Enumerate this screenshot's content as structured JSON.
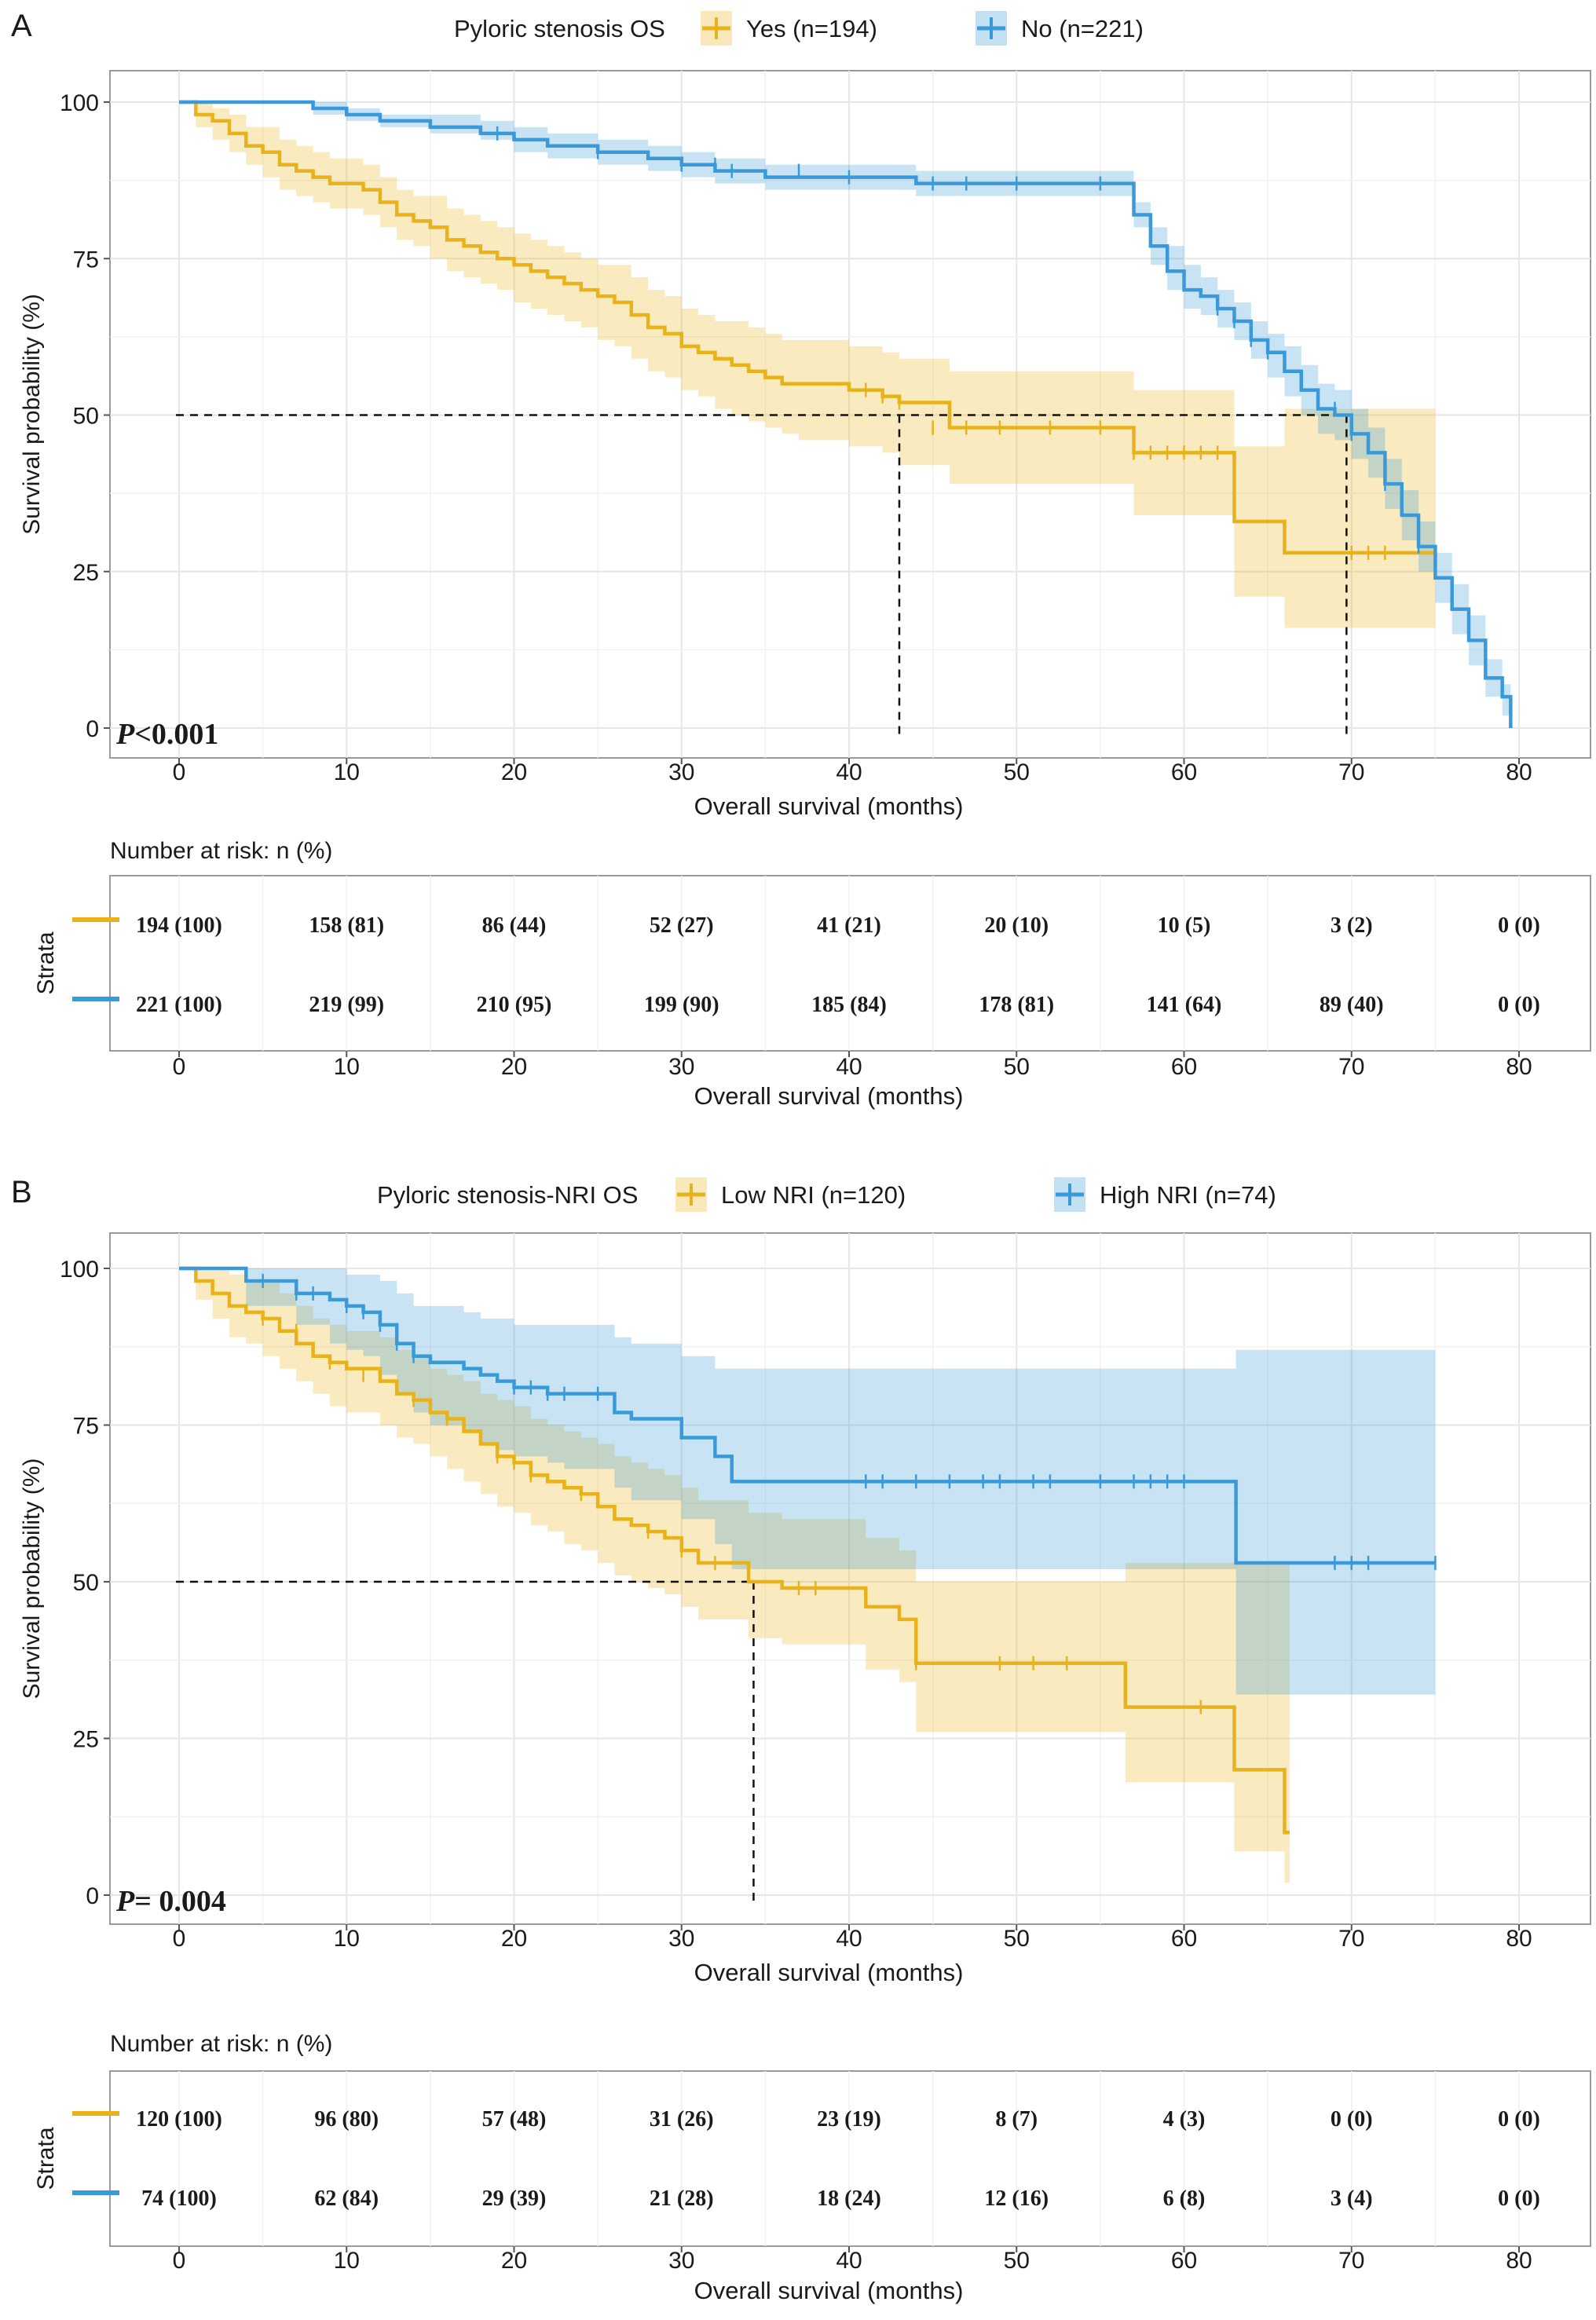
{
  "chart_data": [
    {
      "type": "line",
      "panel_label": "A",
      "legend_title": "Pyloric stenosis OS",
      "xlabel": "Overall survival (months)",
      "ylabel": "Survival probability (%)",
      "xlim": [
        0,
        80
      ],
      "ylim": [
        0,
        100
      ],
      "x_ticks": [
        0,
        10,
        20,
        30,
        40,
        50,
        60,
        70,
        80
      ],
      "y_ticks": [
        0,
        25,
        50,
        75,
        100
      ],
      "p_value_label": "P",
      "p_value_text": "<0.001",
      "median_survival": [
        43,
        69.7
      ],
      "series": [
        {
          "name": "Yes (n=194)",
          "color": "#E8B21A",
          "x": [
            0,
            1,
            2,
            3,
            4,
            5,
            6,
            7,
            8,
            9,
            10,
            11,
            12,
            13,
            14,
            15,
            16,
            17,
            18,
            19,
            20,
            21,
            22,
            23,
            24,
            25,
            26,
            27,
            28,
            29,
            30,
            31,
            32,
            33,
            34,
            35,
            36,
            37,
            38,
            39,
            40,
            41,
            42,
            43,
            46,
            50,
            53,
            56,
            57,
            59,
            60,
            61,
            62,
            62.9,
            63,
            64,
            65,
            65.9,
            66,
            70,
            75
          ],
          "y": [
            100,
            98,
            97,
            95,
            93,
            92,
            90,
            89,
            88,
            87,
            87,
            86,
            84,
            82,
            81,
            80,
            78,
            77,
            76,
            75,
            74,
            73,
            72,
            71,
            70,
            69,
            68,
            66,
            64,
            63,
            61,
            60,
            59,
            58,
            57,
            56,
            55,
            55,
            55,
            55,
            54,
            54,
            53,
            52,
            48,
            48,
            48,
            48,
            44,
            44,
            44,
            44,
            44,
            44,
            33,
            33,
            33,
            33,
            28,
            28,
            28
          ],
          "lower": [
            100,
            96,
            94,
            92,
            90,
            88,
            86,
            85,
            84,
            83,
            83,
            82,
            80,
            78,
            77,
            75,
            73,
            72,
            71,
            70,
            68,
            67,
            66,
            65,
            64,
            62,
            61,
            59,
            57,
            56,
            54,
            53,
            51,
            50,
            49,
            48,
            47,
            46,
            46,
            46,
            45,
            45,
            44,
            42,
            39,
            39,
            39,
            39,
            34,
            34,
            34,
            34,
            34,
            34,
            21,
            21,
            21,
            21,
            16,
            16,
            16
          ],
          "upper": [
            100,
            100,
            99,
            98,
            96,
            96,
            94,
            93,
            92,
            91,
            91,
            90,
            88,
            86,
            85,
            85,
            83,
            82,
            81,
            80,
            79,
            78,
            77,
            76,
            75,
            74,
            74,
            72,
            70,
            69,
            67,
            66,
            65,
            65,
            64,
            63,
            62,
            62,
            62,
            62,
            61,
            61,
            60,
            59,
            57,
            57,
            57,
            57,
            54,
            54,
            54,
            54,
            54,
            54,
            45,
            45,
            45,
            45,
            51,
            51,
            51
          ],
          "censor_x": [
            41,
            42,
            43,
            45,
            47,
            49,
            52,
            55,
            57,
            58,
            59,
            60,
            61,
            62,
            70,
            71,
            72,
            75
          ],
          "censor_y": [
            54,
            53,
            52,
            48,
            48,
            48,
            48,
            48,
            44,
            44,
            44,
            44,
            44,
            44,
            28,
            28,
            28,
            28
          ]
        },
        {
          "name": "No (n=221)",
          "color": "#3A9AD9",
          "x": [
            0,
            5,
            8,
            10,
            12,
            15,
            18,
            20,
            22,
            25,
            28,
            30,
            32,
            35,
            40,
            44,
            46,
            50,
            53,
            56,
            57,
            58,
            59,
            60,
            61,
            62,
            63,
            64,
            65,
            66,
            67,
            68,
            69,
            70,
            71,
            72,
            73,
            74,
            75,
            76,
            77,
            78,
            79,
            79.5
          ],
          "y": [
            100,
            100,
            99,
            98,
            97,
            96,
            95,
            94,
            93,
            92,
            91,
            90,
            89,
            88,
            88,
            87,
            87,
            87,
            87,
            87,
            82,
            77,
            73,
            70,
            69,
            67,
            65,
            62,
            60,
            57,
            54,
            51,
            50,
            47,
            44,
            39,
            34,
            29,
            24,
            19,
            14,
            8,
            5,
            0
          ],
          "lower": [
            100,
            100,
            98,
            97,
            96,
            95,
            94,
            92,
            91,
            90,
            89,
            88,
            87,
            86,
            86,
            85,
            85,
            85,
            85,
            85,
            80,
            74,
            70,
            67,
            66,
            64,
            62,
            59,
            56,
            53,
            50,
            47,
            46,
            43,
            40,
            35,
            30,
            25,
            20,
            15,
            10,
            5,
            2,
            0
          ],
          "upper": [
            100,
            100,
            100,
            99,
            98,
            98,
            97,
            96,
            95,
            94,
            93,
            92,
            91,
            90,
            90,
            89,
            89,
            89,
            89,
            89,
            84,
            80,
            77,
            74,
            72,
            70,
            68,
            65,
            63,
            61,
            58,
            55,
            54,
            51,
            48,
            43,
            38,
            33,
            28,
            23,
            18,
            11,
            7,
            0
          ],
          "censor_x": [
            19,
            25,
            30,
            32,
            33,
            37,
            40,
            45,
            47,
            50,
            55,
            62,
            63,
            64,
            65,
            69,
            70,
            72,
            74
          ],
          "censor_y": [
            95,
            92,
            90,
            90,
            89,
            89,
            88,
            87,
            87,
            87,
            87,
            67,
            65,
            62,
            60,
            51,
            47,
            39,
            29
          ]
        }
      ],
      "risk_table": {
        "title": "Number at risk: n (%)",
        "strata_label": "Strata",
        "xlabel": "Overall survival (months)",
        "x_ticks": [
          0,
          10,
          20,
          30,
          40,
          50,
          60,
          70,
          80
        ],
        "rows": [
          {
            "color": "#E8B21A",
            "values": [
              "194 (100)",
              "158  (81)",
              "86 (44)",
              "52 (27)",
              "41 (21)",
              "20 (10)",
              "10  (5)",
              "3  (2)",
              "0 (0)"
            ]
          },
          {
            "color": "#3A9AD9",
            "values": [
              "221 (100)",
              "219  (99)",
              "210  (95)",
              "199  (90)",
              "185  (84)",
              "178  (81)",
              "141  (64)",
              "89  (40)",
              "0 (0)"
            ]
          }
        ]
      }
    },
    {
      "type": "line",
      "panel_label": "B",
      "legend_title": "Pyloric stenosis-NRI OS",
      "xlabel": "Overall survival (months)",
      "ylabel": "Survival probability (%)",
      "xlim": [
        0,
        80
      ],
      "ylim": [
        0,
        100
      ],
      "x_ticks": [
        0,
        10,
        20,
        30,
        40,
        50,
        60,
        70,
        80
      ],
      "y_ticks": [
        0,
        25,
        50,
        75,
        100
      ],
      "p_value_label": "P",
      "p_value_text": "= 0.004",
      "median_survival": [
        34.3
      ],
      "series": [
        {
          "name": "Low NRI (n=120)",
          "color": "#E8B21A",
          "x": [
            0,
            1,
            2,
            3,
            4,
            5,
            6,
            7,
            8,
            9,
            10,
            12,
            13,
            14,
            15,
            16,
            17,
            18,
            19,
            20,
            21,
            22,
            23,
            24,
            25,
            26,
            27,
            28,
            29,
            30,
            31,
            33,
            34,
            36,
            40,
            41,
            43,
            44,
            50,
            55,
            56.5,
            60,
            63,
            66,
            66.3
          ],
          "y": [
            100,
            98,
            96,
            94,
            93,
            92,
            90,
            88,
            86,
            85,
            84,
            82,
            80,
            79,
            77,
            76,
            74,
            72,
            70,
            69,
            67,
            66,
            65,
            64,
            62,
            60,
            59,
            58,
            57,
            55,
            53,
            53,
            50,
            49,
            49,
            46,
            44,
            37,
            37,
            37,
            30,
            30,
            20,
            10,
            10
          ],
          "lower": [
            100,
            95,
            92,
            89,
            88,
            86,
            84,
            82,
            80,
            78,
            77,
            75,
            73,
            72,
            70,
            68,
            66,
            64,
            62,
            61,
            59,
            58,
            56,
            55,
            53,
            51,
            50,
            49,
            48,
            46,
            44,
            44,
            41,
            40,
            40,
            36,
            34,
            26,
            26,
            26,
            18,
            18,
            7,
            2,
            2
          ],
          "upper": [
            100,
            100,
            100,
            99,
            98,
            98,
            96,
            94,
            92,
            91,
            90,
            89,
            87,
            86,
            84,
            83,
            82,
            80,
            79,
            78,
            76,
            75,
            74,
            73,
            72,
            70,
            69,
            68,
            67,
            65,
            63,
            63,
            61,
            60,
            60,
            57,
            55,
            50,
            50,
            50,
            53,
            53,
            53,
            53,
            53
          ],
          "censor_x": [
            5,
            7,
            9,
            11,
            14,
            16,
            19,
            20,
            21,
            24,
            28,
            30,
            32,
            37,
            38,
            44,
            49,
            51,
            53,
            61
          ],
          "censor_y": [
            92,
            90,
            85,
            83,
            79,
            76,
            70,
            69,
            67,
            64,
            58,
            55,
            53,
            49,
            49,
            37,
            37,
            37,
            37,
            30
          ]
        },
        {
          "name": "High NRI (n=74)",
          "color": "#3A9AD9",
          "x": [
            0,
            4,
            7,
            9,
            10,
            11,
            12,
            13,
            14,
            15,
            16,
            17,
            18,
            19,
            20,
            21,
            22,
            23,
            25,
            26,
            27,
            29,
            30,
            32,
            33,
            34,
            35,
            36,
            38,
            40,
            45,
            50,
            55,
            60,
            63,
            63.1,
            66,
            70,
            75
          ],
          "y": [
            100,
            98,
            96,
            95,
            94,
            93,
            91,
            88,
            86,
            85,
            85,
            84,
            83,
            82,
            81,
            81,
            80,
            80,
            80,
            77,
            76,
            76,
            73,
            70,
            66,
            66,
            66,
            66,
            66,
            66,
            66,
            66,
            66,
            66,
            66,
            53,
            53,
            53,
            53
          ],
          "lower": [
            100,
            94,
            91,
            88,
            87,
            86,
            83,
            80,
            77,
            75,
            75,
            74,
            72,
            71,
            70,
            70,
            69,
            68,
            68,
            65,
            63,
            63,
            60,
            56,
            52,
            52,
            52,
            52,
            52,
            52,
            52,
            52,
            52,
            52,
            52,
            32,
            32,
            32,
            32
          ],
          "upper": [
            100,
            100,
            100,
            100,
            99,
            99,
            98,
            96,
            94,
            94,
            94,
            93,
            92,
            92,
            91,
            91,
            91,
            91,
            91,
            89,
            88,
            88,
            86,
            84,
            84,
            84,
            84,
            84,
            84,
            84,
            84,
            84,
            84,
            84,
            84,
            87,
            87,
            87,
            87
          ],
          "censor_x": [
            5,
            7,
            8,
            10,
            11,
            12,
            13,
            14,
            20,
            21,
            22,
            23,
            25,
            41,
            42,
            44,
            46,
            48,
            49,
            51,
            52,
            55,
            57,
            58,
            59,
            60,
            69,
            70,
            71,
            75
          ],
          "censor_y": [
            98,
            96,
            96,
            94,
            93,
            91,
            88,
            86,
            81,
            81,
            80,
            80,
            80,
            66,
            66,
            66,
            66,
            66,
            66,
            66,
            66,
            66,
            66,
            66,
            66,
            66,
            53,
            53,
            53,
            53
          ]
        }
      ],
      "risk_table": {
        "title": "Number at risk: n (%)",
        "strata_label": "Strata",
        "xlabel": "Overall survival (months)",
        "x_ticks": [
          0,
          10,
          20,
          30,
          40,
          50,
          60,
          70,
          80
        ],
        "rows": [
          {
            "color": "#E8B21A",
            "values": [
              "120 (100)",
              "96 (80)",
              "57 (48)",
              "31 (26)",
              "23 (19)",
              "8 (7)",
              "4 (3)",
              "0 (0)",
              "0 (0)"
            ]
          },
          {
            "color": "#3A9AD9",
            "values": [
              "74 (100)",
              "62 (84)",
              "29 (39)",
              "21 (28)",
              "18 (24)",
              "12 (16)",
              "6 (8)",
              "3 (4)",
              "0 (0)"
            ]
          }
        ]
      }
    }
  ]
}
